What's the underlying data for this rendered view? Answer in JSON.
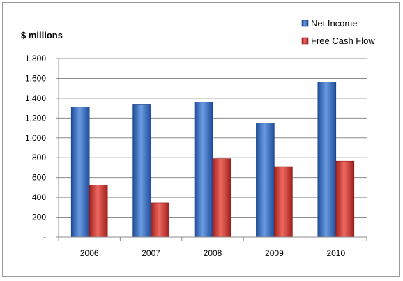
{
  "chart_data": {
    "type": "bar",
    "title": "",
    "xlabel": "",
    "ylabel": "$ millions",
    "categories": [
      "2006",
      "2007",
      "2008",
      "2009",
      "2010"
    ],
    "series": [
      {
        "name": "Net Income",
        "values": [
          1310,
          1340,
          1360,
          1150,
          1565
        ],
        "color": "#3a6fc4"
      },
      {
        "name": "Free Cash Flow",
        "values": [
          525,
          345,
          790,
          710,
          765
        ],
        "color": "#d13b35"
      }
    ],
    "ylim": [
      0,
      1800
    ],
    "yticks": [
      0,
      200,
      400,
      600,
      800,
      1000,
      1200,
      1400,
      1600,
      1800
    ],
    "ytick_labels": [
      "-",
      "200",
      "400",
      "600",
      "800",
      "1,000",
      "1,200",
      "1,400",
      "1,600",
      "1,800"
    ],
    "grid": true,
    "legend": "top-right"
  }
}
